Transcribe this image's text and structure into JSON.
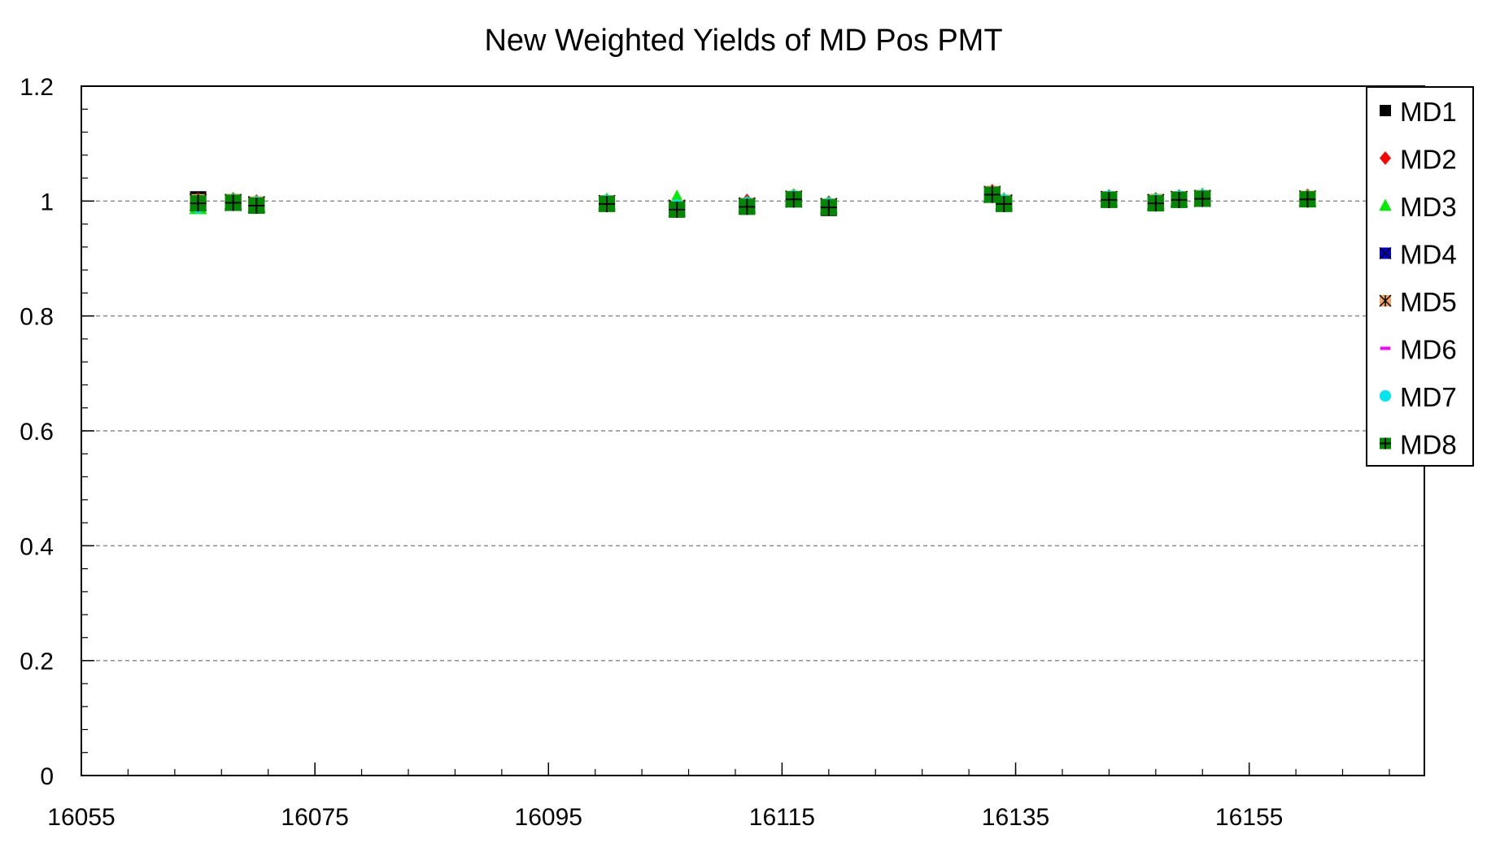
{
  "chart_data": {
    "type": "scatter",
    "title": "New Weighted Yields of MD Pos PMT",
    "xlabel": "",
    "ylabel": "",
    "xlim": [
      16055,
      16170
    ],
    "ylim": [
      0,
      1.2
    ],
    "x_ticks": [
      "16055",
      "16075",
      "16095",
      "16115",
      "16135",
      "16155"
    ],
    "y_ticks": [
      "0",
      "0.2",
      "0.4",
      "0.6",
      "0.8",
      "1",
      "1.2"
    ],
    "grid": "horizontal dashed",
    "legend_position": "top-right",
    "x": [
      16065,
      16068,
      16070,
      16100,
      16106,
      16112,
      16116,
      16119,
      16133,
      16134,
      16143,
      16147,
      16149,
      16151,
      16160
    ],
    "series": [
      {
        "name": "MD1",
        "color": "#000000",
        "marker": "square",
        "values": [
          1.003,
          0.998,
          0.994,
          0.996,
          0.986,
          0.991,
          1.004,
          0.988,
          1.012,
          0.997,
          1.003,
          0.998,
          1.003,
          1.005,
          1.004
        ]
      },
      {
        "name": "MD2",
        "color": "#ff0000",
        "marker": "diamond",
        "values": [
          0.998,
          0.999,
          0.995,
          0.997,
          0.991,
          0.996,
          1.005,
          0.993,
          1.013,
          0.998,
          1.004,
          0.999,
          1.004,
          1.006,
          1.005
        ]
      },
      {
        "name": "MD3",
        "color": "#00ee00",
        "marker": "triangle",
        "values": [
          0.99,
          0.999,
          0.994,
          0.998,
          1.003,
          0.993,
          1.006,
          0.992,
          1.01,
          0.999,
          1.004,
          0.999,
          1.004,
          1.007,
          1.004
        ]
      },
      {
        "name": "MD4",
        "color": "#0000cc",
        "marker": "square-x",
        "values": [
          0.997,
          0.997,
          0.993,
          0.996,
          0.987,
          0.991,
          1.003,
          0.99,
          1.011,
          0.996,
          1.003,
          0.997,
          1.003,
          1.004,
          1.004
        ]
      },
      {
        "name": "MD5",
        "color": "#f4a460",
        "marker": "square-star",
        "values": [
          0.998,
          0.998,
          0.994,
          0.996,
          0.988,
          0.992,
          1.004,
          0.991,
          1.012,
          0.997,
          1.003,
          0.998,
          1.003,
          1.005,
          1.004
        ]
      },
      {
        "name": "MD6",
        "color": "#ff00ff",
        "marker": "dash",
        "values": [
          0.999,
          0.999,
          0.995,
          0.997,
          0.99,
          0.995,
          1.004,
          0.993,
          1.012,
          0.998,
          1.004,
          0.999,
          1.004,
          1.006,
          1.005
        ]
      },
      {
        "name": "MD7",
        "color": "#00e5ee",
        "marker": "circle",
        "values": [
          0.993,
          0.998,
          0.994,
          0.997,
          0.989,
          0.993,
          1.005,
          0.992,
          1.011,
          0.998,
          1.004,
          0.998,
          1.004,
          1.006,
          1.004
        ]
      },
      {
        "name": "MD8",
        "color": "#008800",
        "marker": "square-plus",
        "values": [
          0.996,
          0.997,
          0.992,
          0.995,
          0.985,
          0.99,
          1.003,
          0.989,
          1.011,
          0.995,
          1.002,
          0.996,
          1.002,
          1.004,
          1.003
        ]
      }
    ]
  }
}
